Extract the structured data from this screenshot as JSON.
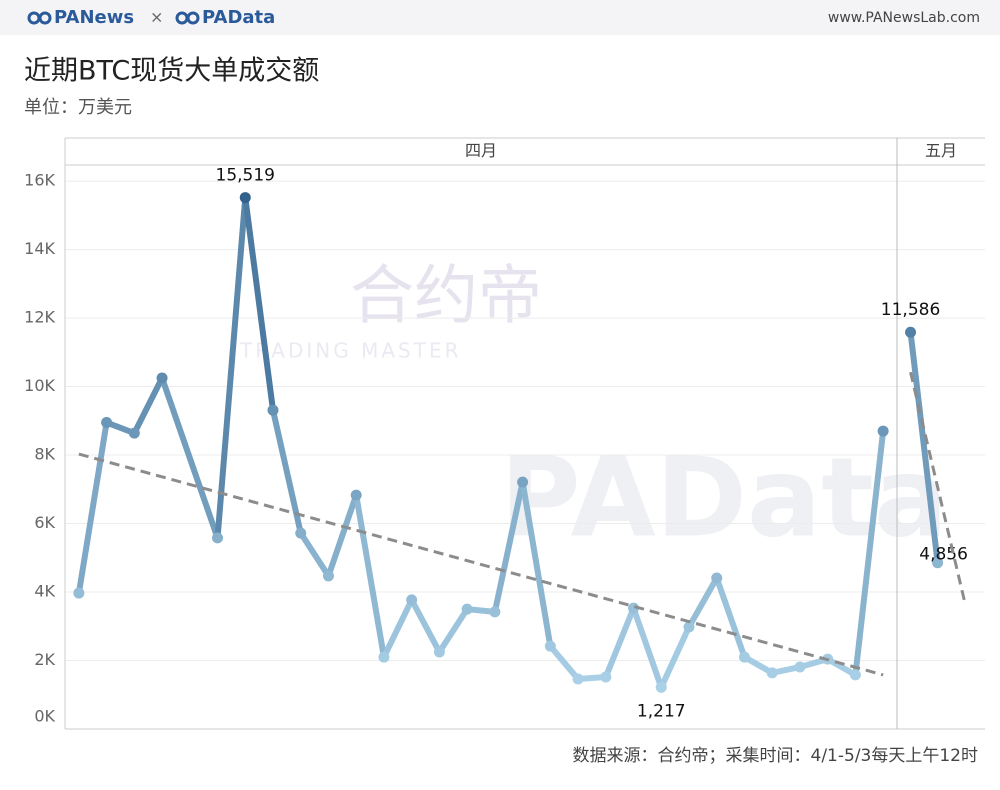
{
  "header": {
    "brand_left": "PANews",
    "separator": "×",
    "brand_right": "PAData",
    "url": "www.PANewsLab.com"
  },
  "title": "近期BTC现货大单成交额",
  "subtitle": "单位：万美元",
  "source": "数据来源：合约帝；采集时间：4/1-5/3每天上午12时",
  "watermarks": [
    "合约帝",
    "TRADING MASTER",
    "PAData"
  ],
  "chart_data": [
    {
      "type": "line",
      "panel": "四月",
      "xlim": [
        0.5,
        30.5
      ],
      "ylim": [
        0,
        16470
      ],
      "yticks": [
        {
          "value": 0,
          "label": "0K"
        },
        {
          "value": 2000,
          "label": "2K"
        },
        {
          "value": 4000,
          "label": "4K"
        },
        {
          "value": 6000,
          "label": "6K"
        },
        {
          "value": 8000,
          "label": "8K"
        },
        {
          "value": 10000,
          "label": "10K"
        },
        {
          "value": 12000,
          "label": "12K"
        },
        {
          "value": 14000,
          "label": "14K"
        },
        {
          "value": 16000,
          "label": "16K"
        }
      ],
      "grid": true,
      "series": [
        {
          "colors": [
            "#b5dbef",
            "#2a5a86"
          ],
          "x": [
            1,
            2,
            3,
            4,
            6,
            7,
            8,
            9,
            10,
            11,
            12,
            13,
            14,
            15,
            16,
            17,
            18,
            19,
            20,
            21,
            22,
            23,
            24,
            25,
            26,
            27,
            28,
            29,
            30
          ],
          "values": [
            3970,
            8950,
            8640,
            10250,
            5580,
            15519,
            9310,
            5720,
            4470,
            6830,
            2100,
            3770,
            2250,
            3500,
            3420,
            7210,
            2420,
            1460,
            1520,
            3530,
            1217,
            2980,
            4410,
            2100,
            1640,
            1810,
            2040,
            1580,
            8700
          ],
          "value_labels": [
            null,
            null,
            null,
            null,
            null,
            "15,519",
            null,
            null,
            null,
            null,
            null,
            null,
            null,
            null,
            null,
            null,
            null,
            null,
            null,
            null,
            "1,217",
            null,
            null,
            null,
            null,
            null,
            null,
            null,
            null
          ]
        },
        {
          "style": "dashed",
          "color": "#8c8c8c",
          "x": [
            1,
            30
          ],
          "values": [
            8030,
            1580
          ]
        }
      ]
    },
    {
      "type": "line",
      "panel": "五月",
      "xlim": [
        0.5,
        3.75
      ],
      "ylim": [
        0,
        16470
      ],
      "series": [
        {
          "colors": [
            "#b5dbef",
            "#2a5a86"
          ],
          "x": [
            1,
            2
          ],
          "values": [
            11586,
            4856
          ],
          "value_labels": [
            "11,586",
            "4,856"
          ]
        },
        {
          "style": "dashed",
          "color": "#8c8c8c",
          "x": [
            1,
            3
          ],
          "values": [
            10420,
            3710
          ]
        }
      ]
    }
  ]
}
